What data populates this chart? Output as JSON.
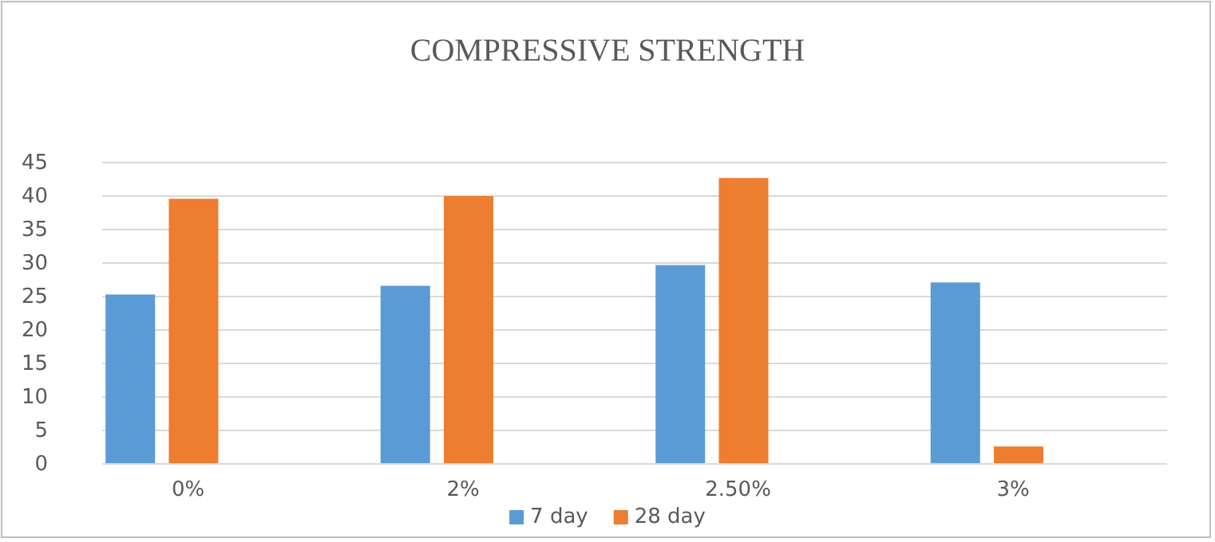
{
  "chart_data": {
    "type": "bar",
    "title": "COMPRESSIVE STRENGTH",
    "categories": [
      "0%",
      "2%",
      "2.50%",
      "3%"
    ],
    "series": [
      {
        "name": "7 day",
        "color": "#5b9bd5",
        "values": [
          25.3,
          26.6,
          29.7,
          27.1
        ]
      },
      {
        "name": "28 day",
        "color": "#ed7d31",
        "values": [
          39.6,
          40.0,
          42.7,
          2.6
        ]
      }
    ],
    "ylim": [
      0,
      45
    ],
    "yticks": [
      0,
      5,
      10,
      15,
      20,
      25,
      30,
      35,
      40,
      45
    ],
    "grid": "y",
    "legend": "bottom"
  }
}
